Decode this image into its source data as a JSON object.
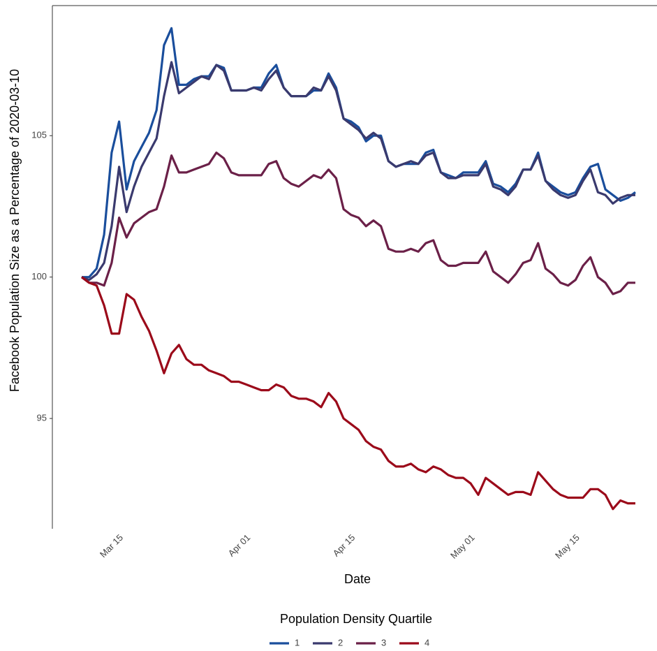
{
  "chart_data": {
    "type": "line",
    "x_label": "Date",
    "y_label": "Facebook Population Size as a Percentage of 2020-03-10",
    "legend_title": "Population Density Quartile",
    "legend_position": "bottom",
    "x": [
      "Mar 10",
      "Mar 11",
      "Mar 12",
      "Mar 13",
      "Mar 14",
      "Mar 15",
      "Mar 16",
      "Mar 17",
      "Mar 18",
      "Mar 19",
      "Mar 20",
      "Mar 21",
      "Mar 22",
      "Mar 23",
      "Mar 24",
      "Mar 25",
      "Mar 26",
      "Mar 27",
      "Mar 28",
      "Mar 29",
      "Mar 30",
      "Mar 31",
      "Apr 01",
      "Apr 02",
      "Apr 03",
      "Apr 04",
      "Apr 05",
      "Apr 06",
      "Apr 07",
      "Apr 08",
      "Apr 09",
      "Apr 10",
      "Apr 11",
      "Apr 12",
      "Apr 13",
      "Apr 14",
      "Apr 15",
      "Apr 16",
      "Apr 17",
      "Apr 18",
      "Apr 19",
      "Apr 20",
      "Apr 21",
      "Apr 22",
      "Apr 23",
      "Apr 24",
      "Apr 25",
      "Apr 26",
      "Apr 27",
      "Apr 28",
      "Apr 29",
      "Apr 30",
      "May 01",
      "May 02",
      "May 03",
      "May 04",
      "May 05",
      "May 06",
      "May 07",
      "May 08",
      "May 09",
      "May 10",
      "May 11",
      "May 12",
      "May 13",
      "May 14",
      "May 15",
      "May 16",
      "May 17",
      "May 18",
      "May 19",
      "May 20",
      "May 21",
      "May 22",
      "May 23"
    ],
    "xlim": [
      "Mar 10",
      "May 23"
    ],
    "xticks": [
      "Mar 15",
      "Apr 01",
      "Apr 15",
      "May 01",
      "May 15"
    ],
    "ylim": [
      91.1,
      109.6
    ],
    "yticks": [
      95,
      100,
      105
    ],
    "series": [
      {
        "name": "1",
        "color": "#1a4e9c",
        "values": [
          100,
          100,
          100.3,
          101.5,
          104.4,
          105.5,
          103.1,
          104.1,
          104.6,
          105.1,
          105.9,
          108.2,
          108.8,
          106.8,
          106.8,
          107,
          107.1,
          107.1,
          107.5,
          107.4,
          106.6,
          106.6,
          106.6,
          106.7,
          106.7,
          107.2,
          107.5,
          106.7,
          106.4,
          106.4,
          106.4,
          106.6,
          106.6,
          107.2,
          106.7,
          105.6,
          105.5,
          105.3,
          104.8,
          105,
          105,
          104.1,
          103.9,
          104,
          104,
          104,
          104.4,
          104.5,
          103.7,
          103.6,
          103.5,
          103.7,
          103.7,
          103.7,
          104.1,
          103.3,
          103.2,
          103,
          103.3,
          103.8,
          103.8,
          104.4,
          103.4,
          103.2,
          103,
          102.9,
          103,
          103.5,
          103.9,
          104,
          103.1,
          102.9,
          102.7,
          102.8,
          103
        ]
      },
      {
        "name": "2",
        "color": "#3a3a6e",
        "values": [
          100,
          99.9,
          100.1,
          100.5,
          101.8,
          103.9,
          102.3,
          103.2,
          103.9,
          104.4,
          104.9,
          106.4,
          107.6,
          106.5,
          106.7,
          106.9,
          107.1,
          107,
          107.5,
          107.3,
          106.6,
          106.6,
          106.6,
          106.7,
          106.6,
          107,
          107.3,
          106.7,
          106.4,
          106.4,
          106.4,
          106.7,
          106.6,
          107.1,
          106.6,
          105.6,
          105.4,
          105.2,
          104.9,
          105.1,
          104.9,
          104.1,
          103.9,
          104,
          104.1,
          104,
          104.3,
          104.4,
          103.7,
          103.5,
          103.5,
          103.6,
          103.6,
          103.6,
          104,
          103.2,
          103.1,
          102.9,
          103.2,
          103.8,
          103.8,
          104.3,
          103.4,
          103.1,
          102.9,
          102.8,
          102.9,
          103.4,
          103.8,
          103,
          102.9,
          102.6,
          102.8,
          102.9,
          102.9
        ]
      },
      {
        "name": "3",
        "color": "#6b2048",
        "values": [
          100,
          99.8,
          99.8,
          99.7,
          100.5,
          102.1,
          101.4,
          101.9,
          102.1,
          102.3,
          102.4,
          103.2,
          104.3,
          103.7,
          103.7,
          103.8,
          103.9,
          104,
          104.4,
          104.2,
          103.7,
          103.6,
          103.6,
          103.6,
          103.6,
          104,
          104.1,
          103.5,
          103.3,
          103.2,
          103.4,
          103.6,
          103.5,
          103.8,
          103.5,
          102.4,
          102.2,
          102.1,
          101.8,
          102,
          101.8,
          101,
          100.9,
          100.9,
          101,
          100.9,
          101.2,
          101.3,
          100.6,
          100.4,
          100.4,
          100.5,
          100.5,
          100.5,
          100.9,
          100.2,
          100,
          99.8,
          100.1,
          100.5,
          100.6,
          101.2,
          100.3,
          100.1,
          99.8,
          99.7,
          99.9,
          100.4,
          100.7,
          100,
          99.8,
          99.4,
          99.5,
          99.8,
          99.8
        ]
      },
      {
        "name": "4",
        "color": "#9b0a1a",
        "values": [
          100,
          99.8,
          99.7,
          99,
          98,
          98,
          99.4,
          99.2,
          98.6,
          98.1,
          97.4,
          96.6,
          97.3,
          97.6,
          97.1,
          96.9,
          96.9,
          96.7,
          96.6,
          96.5,
          96.3,
          96.3,
          96.2,
          96.1,
          96,
          96,
          96.2,
          96.1,
          95.8,
          95.7,
          95.7,
          95.6,
          95.4,
          95.9,
          95.6,
          95,
          94.8,
          94.6,
          94.2,
          94,
          93.9,
          93.5,
          93.3,
          93.3,
          93.4,
          93.2,
          93.1,
          93.3,
          93.2,
          93,
          92.9,
          92.9,
          92.7,
          92.3,
          92.9,
          92.7,
          92.5,
          92.3,
          92.4,
          92.4,
          92.3,
          93.1,
          92.8,
          92.5,
          92.3,
          92.2,
          92.2,
          92.2,
          92.5,
          92.5,
          92.3,
          91.8,
          92.1,
          92,
          92
        ]
      }
    ]
  }
}
